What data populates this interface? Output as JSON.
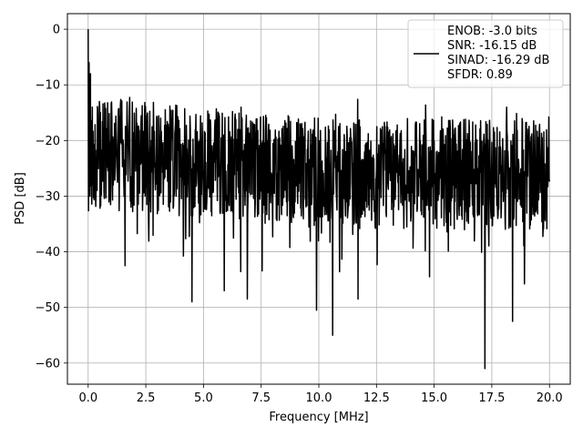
{
  "chart_data": {
    "type": "line",
    "title": "",
    "xlabel": "Frequency [MHz]",
    "ylabel": "PSD [dB]",
    "xlim": [
      -0.9,
      20.9
    ],
    "ylim": [
      -63.8,
      2.8
    ],
    "xticks": [
      0.0,
      2.5,
      5.0,
      7.5,
      10.0,
      12.5,
      15.0,
      17.5,
      20.0
    ],
    "xtick_labels": [
      "0.0",
      "2.5",
      "5.0",
      "7.5",
      "10.0",
      "12.5",
      "15.0",
      "17.5",
      "20.0"
    ],
    "yticks": [
      0,
      -10,
      -20,
      -30,
      -40,
      -50,
      -60
    ],
    "ytick_labels": [
      "0",
      "−10",
      "−20",
      "−30",
      "−40",
      "−50",
      "−60"
    ],
    "grid": true,
    "legend_position": "top-right",
    "series": [
      {
        "name": "ENOB: -3.0 bits",
        "color": "#000000",
        "x_range": [
          0,
          20
        ],
        "peak": {
          "x": 0.0,
          "y": 0.0
        },
        "typical_band_db": [
          -35,
          -15
        ],
        "noise_floor_trend": [
          {
            "x": 0.0,
            "y": -22
          },
          {
            "x": 2.5,
            "y": -23
          },
          {
            "x": 5.0,
            "y": -24
          },
          {
            "x": 7.5,
            "y": -25
          },
          {
            "x": 10.0,
            "y": -26
          },
          {
            "x": 12.5,
            "y": -26
          },
          {
            "x": 15.0,
            "y": -26
          },
          {
            "x": 17.5,
            "y": -26
          },
          {
            "x": 20.0,
            "y": -26
          }
        ],
        "deep_nulls": [
          {
            "x": 1.6,
            "y": -42.5
          },
          {
            "x": 4.5,
            "y": -49
          },
          {
            "x": 5.9,
            "y": -47
          },
          {
            "x": 6.9,
            "y": -48.5
          },
          {
            "x": 9.9,
            "y": -50.5
          },
          {
            "x": 10.6,
            "y": -55
          },
          {
            "x": 11.7,
            "y": -48.5
          },
          {
            "x": 17.2,
            "y": -61
          },
          {
            "x": 18.4,
            "y": -52.5
          }
        ]
      }
    ],
    "legend_entries": [
      "ENOB: -3.0 bits",
      "SNR: -16.15 dB",
      "SINAD: -16.29 dB",
      "SFDR: 0.89"
    ]
  }
}
